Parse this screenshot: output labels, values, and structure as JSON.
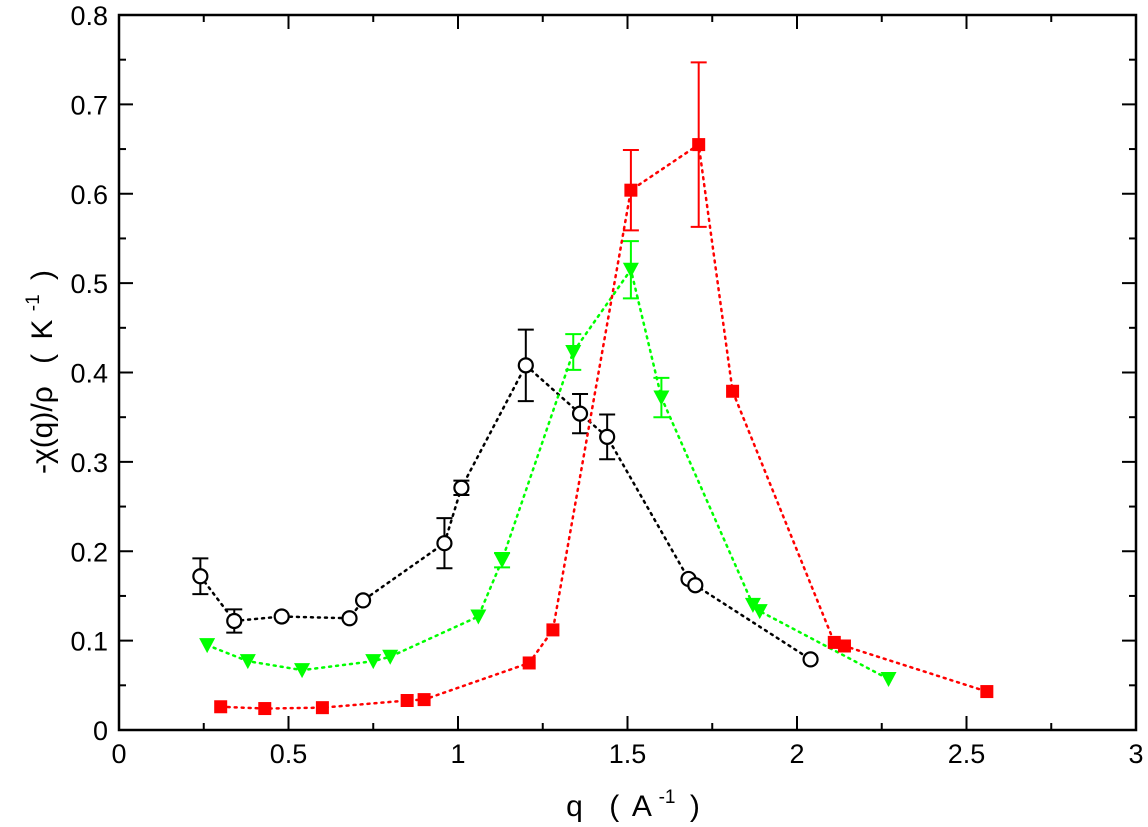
{
  "chart_data": {
    "type": "scatter",
    "title": "",
    "xlabel": {
      "main": "q",
      "paren_open": "(",
      "unit": "A",
      "exponent": "-1",
      "paren_close": ")"
    },
    "ylabel": {
      "main": "-χ(q)/ρ",
      "paren_open": "(",
      "unit": "K",
      "exponent": "-1",
      "paren_close": ")"
    },
    "xlim": [
      0,
      3
    ],
    "ylim": [
      0,
      0.8
    ],
    "xticks": [
      "0",
      "0.5",
      "1",
      "1.5",
      "2",
      "2.5",
      "3"
    ],
    "yticks": [
      "0",
      "0.1",
      "0.2",
      "0.3",
      "0.4",
      "0.5",
      "0.6",
      "0.7",
      "0.8"
    ],
    "grid": false,
    "legend": "none",
    "series": [
      {
        "marker": "circle-open",
        "color": "#000000",
        "line": "dotted",
        "points": [
          {
            "x": 0.24,
            "y": 0.172,
            "err": 0.02
          },
          {
            "x": 0.34,
            "y": 0.122,
            "err": 0.013
          },
          {
            "x": 0.48,
            "y": 0.127,
            "err": 0
          },
          {
            "x": 0.68,
            "y": 0.125,
            "err": 0
          },
          {
            "x": 0.72,
            "y": 0.145,
            "err": 0
          },
          {
            "x": 0.96,
            "y": 0.209,
            "err": 0.028
          },
          {
            "x": 1.01,
            "y": 0.271,
            "err": 0.008
          },
          {
            "x": 1.2,
            "y": 0.408,
            "err": 0.04
          },
          {
            "x": 1.36,
            "y": 0.354,
            "err": 0.022
          },
          {
            "x": 1.44,
            "y": 0.328,
            "err": 0.025
          },
          {
            "x": 1.68,
            "y": 0.169,
            "err": 0
          },
          {
            "x": 1.7,
            "y": 0.162,
            "err": 0
          },
          {
            "x": 2.04,
            "y": 0.079,
            "err": 0
          }
        ]
      },
      {
        "marker": "triangle-down-filled",
        "color": "#00ff00",
        "line": "dotted",
        "points": [
          {
            "x": 0.26,
            "y": 0.095,
            "err": 0
          },
          {
            "x": 0.38,
            "y": 0.077,
            "err": 0
          },
          {
            "x": 0.54,
            "y": 0.067,
            "err": 0
          },
          {
            "x": 0.75,
            "y": 0.077,
            "err": 0
          },
          {
            "x": 0.8,
            "y": 0.082,
            "err": 0
          },
          {
            "x": 1.06,
            "y": 0.127,
            "err": 0
          },
          {
            "x": 1.13,
            "y": 0.19,
            "err": 0.008
          },
          {
            "x": 1.34,
            "y": 0.423,
            "err": 0.02
          },
          {
            "x": 1.51,
            "y": 0.515,
            "err": 0.032
          },
          {
            "x": 1.6,
            "y": 0.372,
            "err": 0.022
          },
          {
            "x": 1.87,
            "y": 0.14,
            "err": 0
          },
          {
            "x": 1.89,
            "y": 0.133,
            "err": 0
          },
          {
            "x": 2.27,
            "y": 0.057,
            "err": 0
          }
        ]
      },
      {
        "marker": "square-filled",
        "color": "#ff0000",
        "line": "dotted",
        "points": [
          {
            "x": 0.3,
            "y": 0.026,
            "err": 0
          },
          {
            "x": 0.43,
            "y": 0.024,
            "err": 0
          },
          {
            "x": 0.6,
            "y": 0.025,
            "err": 0
          },
          {
            "x": 0.85,
            "y": 0.033,
            "err": 0
          },
          {
            "x": 0.9,
            "y": 0.034,
            "err": 0
          },
          {
            "x": 1.21,
            "y": 0.075,
            "err": 0
          },
          {
            "x": 1.28,
            "y": 0.112,
            "err": 0
          },
          {
            "x": 1.51,
            "y": 0.604,
            "err": 0.045
          },
          {
            "x": 1.71,
            "y": 0.655,
            "err": 0.092
          },
          {
            "x": 1.81,
            "y": 0.379,
            "err": 0
          },
          {
            "x": 2.11,
            "y": 0.098,
            "err": 0
          },
          {
            "x": 2.14,
            "y": 0.094,
            "err": 0
          },
          {
            "x": 2.56,
            "y": 0.043,
            "err": 0
          }
        ]
      }
    ]
  }
}
